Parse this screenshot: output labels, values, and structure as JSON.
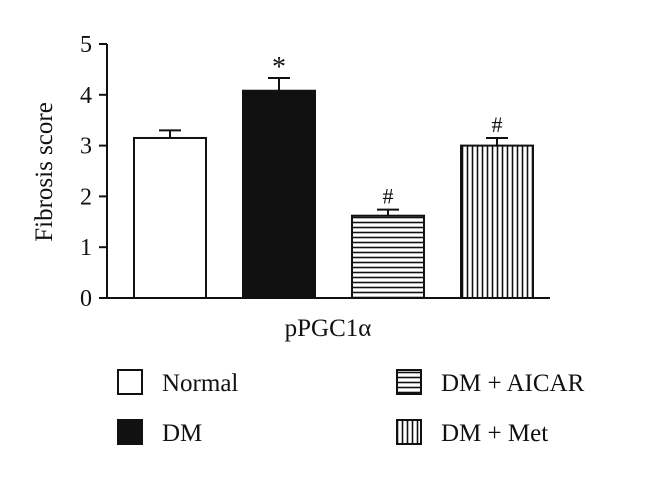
{
  "chart_data": {
    "type": "bar",
    "ylabel": "Fibrosis score",
    "xlabel": "pPGC1α",
    "ylim": [
      0,
      5
    ],
    "yticks": [
      "0",
      "1",
      "2",
      "3",
      "4",
      "5"
    ],
    "grid": false,
    "legend_position": "bottom",
    "series": [
      {
        "name": "Normal",
        "value": 3.15,
        "error": 0.15,
        "annotation": "",
        "pattern": "white"
      },
      {
        "name": "DM",
        "value": 4.08,
        "error": 0.25,
        "annotation": "*",
        "pattern": "black"
      },
      {
        "name": "DM + AICAR",
        "value": 1.62,
        "error": 0.12,
        "annotation": "#",
        "pattern": "horizontal"
      },
      {
        "name": "DM + Met",
        "value": 3.0,
        "error": 0.15,
        "annotation": "#",
        "pattern": "vertical"
      }
    ],
    "colors": {
      "stroke": "#111111",
      "fill_dark": "#111111",
      "fill_light": "#ffffff"
    }
  }
}
